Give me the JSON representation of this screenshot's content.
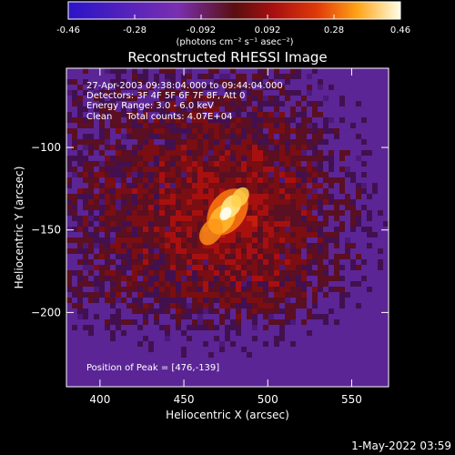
{
  "colorbar": {
    "ticks": [
      "-0.46",
      "-0.28",
      "-0.092",
      "0.092",
      "0.28",
      "0.46"
    ],
    "units": "(photons cm⁻² s⁻¹ asec⁻²)",
    "range": [
      -0.46,
      0.46
    ],
    "stops": [
      {
        "v": 0.0,
        "color": "#2a14c8"
      },
      {
        "v": 0.33,
        "color": "#7a2fb0"
      },
      {
        "v": 0.5,
        "color": "#5a0f10"
      },
      {
        "v": 0.62,
        "color": "#a81010"
      },
      {
        "v": 0.75,
        "color": "#e03a0a"
      },
      {
        "v": 0.87,
        "color": "#ffa316"
      },
      {
        "v": 1.0,
        "color": "#ffffe6"
      }
    ]
  },
  "chart_data": {
    "type": "heatmap",
    "title": "Reconstructed RHESSI Image",
    "xlabel": "Heliocentric X (arcsec)",
    "ylabel": "Heliocentric Y (arcsec)",
    "xlim": [
      380,
      572
    ],
    "ylim": [
      -245,
      -52
    ],
    "xticks": [
      400,
      450,
      500,
      550
    ],
    "yticks": [
      -100,
      -150,
      -200
    ],
    "annotations": [
      "27-Apr-2003 09:38:04.000 to 09:44:04.000",
      "Detectors: 3F 4F 5F 6F 7F 8F, Att 0",
      "Energy Range: 3.0 - 6.0 keV",
      "Clean     Total counts: 4.07E+04"
    ],
    "peak_label": "Position of Peak = [476,-139]",
    "peak": [
      476,
      -139
    ]
  },
  "footer": {
    "timestamp": "1-May-2022 03:59"
  }
}
